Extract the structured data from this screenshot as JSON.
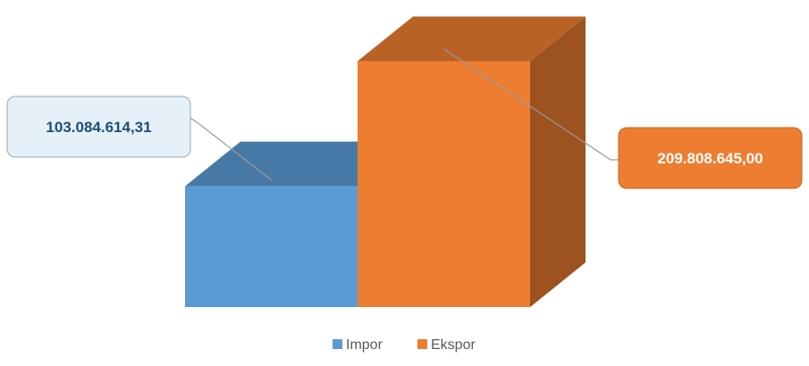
{
  "chart_data": {
    "type": "bar",
    "title": "",
    "xlabel": "",
    "ylabel": "",
    "categories": [
      "Impor",
      "Ekspor"
    ],
    "series": [
      {
        "name": "Impor",
        "values": [
          103084614.31,
          null
        ],
        "color": "#5B9BD5"
      },
      {
        "name": "Ekspor",
        "values": [
          null,
          209808645.0
        ],
        "color": "#ED7D31"
      }
    ],
    "data_labels": [
      "103.084.614,31",
      "209.808.645,00"
    ],
    "ylim": [
      0,
      230000000
    ],
    "grid": false,
    "legend_position": "bottom",
    "style": "3d-column"
  },
  "legend": {
    "items": [
      {
        "label": "Impor",
        "color": "#5B9BD5"
      },
      {
        "label": "Ekspor",
        "color": "#ED7D31"
      }
    ]
  }
}
